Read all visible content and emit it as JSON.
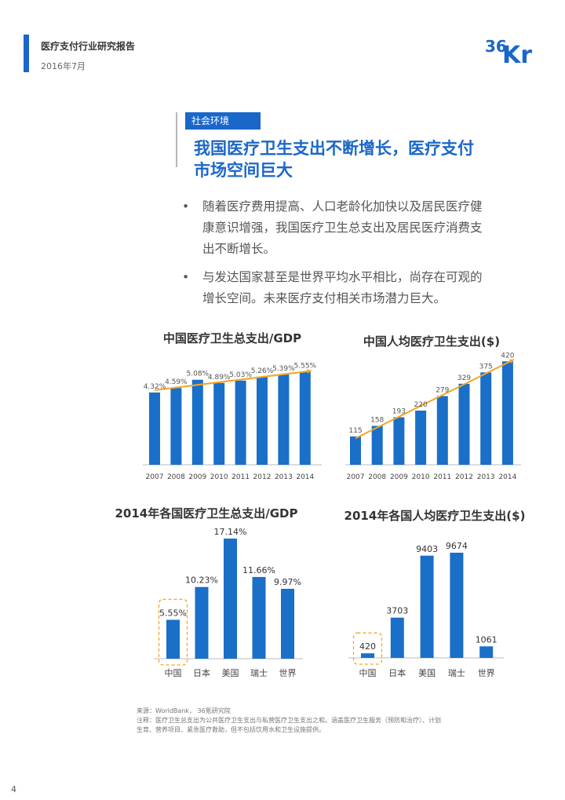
{
  "header": {
    "title": "医疗支付行业研究报告",
    "date": "2016年7月",
    "logo": {
      "part1": "36",
      "part2": "Kr"
    }
  },
  "section": {
    "tag": "社会环境",
    "title_line1": "我国医疗卫生支出不断增长，医疗支付",
    "title_line2": "市场空间巨大",
    "bullets": [
      {
        "marker": "•",
        "lines": [
          "随着医疗费用提高、人口老龄化加快以及居民医疗健",
          "康意识增强，我国医疗卫生总支出及居民医疗消费支",
          "出不断增长。"
        ]
      },
      {
        "marker": "•",
        "lines": [
          "与发达国家甚至是世界平均水平相比，尚存在可观的",
          "增长空间。未来医疗支付相关市场潜力巨大。"
        ]
      }
    ]
  },
  "colors": {
    "accent": "#1a67c9",
    "bar": "#1a6fc8",
    "trend": "#f5a623",
    "highlight_box": "#f5a623"
  },
  "chart_data": [
    {
      "type": "bar",
      "title": "中国医疗卫生总支出/GDP",
      "categories": [
        "2007",
        "2008",
        "2009",
        "2010",
        "2011",
        "2012",
        "2013",
        "2014"
      ],
      "values": [
        4.32,
        4.59,
        5.08,
        4.89,
        5.03,
        5.26,
        5.39,
        5.55
      ],
      "labels": [
        "4.32%",
        "4.59%",
        "5.08%",
        "4.89%",
        "5.03%",
        "5.26%",
        "5.39%",
        "5.55%"
      ],
      "trendline": true,
      "ylim": [
        0,
        6.1
      ]
    },
    {
      "type": "bar",
      "title": "中国人均医疗卫生支出($)",
      "categories": [
        "2007",
        "2008",
        "2009",
        "2010",
        "2011",
        "2012",
        "2013",
        "2014"
      ],
      "values": [
        115,
        158,
        193,
        220,
        279,
        329,
        375,
        420
      ],
      "labels": [
        "115",
        "158",
        "193",
        "220",
        "279",
        "329",
        "375",
        "420"
      ],
      "trendline": true,
      "ylim": [
        0,
        440
      ]
    },
    {
      "type": "bar",
      "title": "2014年各国医疗卫生总支出/GDP",
      "categories": [
        "中国",
        "日本",
        "美国",
        "瑞士",
        "世界"
      ],
      "values": [
        5.55,
        10.23,
        17.14,
        11.66,
        9.97
      ],
      "labels": [
        "5.55%",
        "10.23%",
        "17.14%",
        "11.66%",
        "9.97%"
      ],
      "highlight_index": 0,
      "ylim": [
        0,
        17.14
      ]
    },
    {
      "type": "bar",
      "title": "2014年各国人均医疗卫生支出($)",
      "categories": [
        "中国",
        "日本",
        "美国",
        "瑞士",
        "世界"
      ],
      "values": [
        420,
        3703,
        9403,
        9674,
        1061
      ],
      "labels": [
        "420",
        "3703",
        "9403",
        "9674",
        "1061"
      ],
      "highlight_index": 0,
      "ylim": [
        0,
        9674
      ]
    }
  ],
  "footer": {
    "source": "来源：WorldBank， 36氪研究院",
    "note_line1": "注释：医疗卫生总支出为公共医疗卫生支出与私营医疗卫生支出之和。涵盖医疗卫生服务（预防和治疗）、计划",
    "note_line2": "生育、营养项目、紧急医疗救助，但不包括饮用水和卫生设施提供。",
    "page_number": "4"
  }
}
